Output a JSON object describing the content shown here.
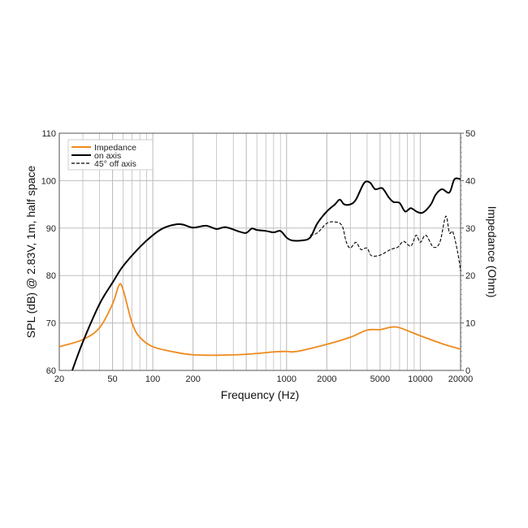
{
  "chart_data": {
    "type": "line",
    "title": "",
    "xlabel": "Frequency (Hz)",
    "ylabel": "SPL (dB) @ 2.83V, 1m, half space",
    "y2label": "Impedance (Ohm)",
    "xscale": "log",
    "xlim": [
      20,
      20000
    ],
    "ylim": [
      60,
      110
    ],
    "y2lim": [
      0,
      50
    ],
    "grid": true,
    "legend_position": "top-left",
    "x_ticks": [
      20,
      50,
      100,
      200,
      1000,
      2000,
      5000,
      10000,
      20000
    ],
    "x_tick_labels": [
      "20",
      "50",
      "100",
      "200",
      "1000",
      "2000",
      "5000",
      "10000",
      "20000"
    ],
    "y_ticks": [
      "60",
      "70",
      "80",
      "90",
      "100",
      "110"
    ],
    "y2_ticks": [
      "0",
      "10",
      "20",
      "30",
      "40",
      "50"
    ],
    "colors": {
      "impedance": "#ef8a1c",
      "on_axis": "#000000",
      "off_axis": "#000000"
    },
    "series": [
      {
        "name": "Impedance",
        "axis": "right",
        "style": "solid",
        "x": [
          20,
          30,
          40,
          50,
          56,
          60,
          70,
          80,
          100,
          150,
          200,
          300,
          500,
          800,
          1000,
          1200,
          2000,
          3000,
          4000,
          5000,
          6000,
          7000,
          10000,
          15000,
          20000
        ],
        "y": [
          5,
          6.5,
          9,
          14,
          18,
          17,
          10,
          7,
          5,
          3.8,
          3.3,
          3.2,
          3.4,
          3.9,
          4.0,
          4.0,
          5.5,
          7,
          8.5,
          8.6,
          9.1,
          9,
          7.3,
          5.5,
          4.5
        ]
      },
      {
        "name": "on axis",
        "axis": "left",
        "style": "solid",
        "x": [
          25,
          30,
          40,
          50,
          60,
          80,
          100,
          120,
          150,
          170,
          200,
          250,
          300,
          350,
          450,
          500,
          550,
          600,
          700,
          800,
          900,
          1000,
          1100,
          1300,
          1500,
          1700,
          2000,
          2300,
          2500,
          2700,
          3000,
          3300,
          3800,
          4200,
          4600,
          5200,
          5800,
          6300,
          7000,
          7700,
          8500,
          9500,
          10500,
          12000,
          13000,
          14500,
          16500,
          18000,
          20000
        ],
        "y": [
          60,
          66,
          74,
          78.5,
          82,
          86,
          88.5,
          90,
          90.8,
          90.7,
          90.1,
          90.5,
          89.8,
          90.2,
          89.2,
          89,
          89.9,
          89.6,
          89.4,
          89.1,
          89.4,
          88,
          87.4,
          87.4,
          88,
          91,
          93.5,
          95,
          96,
          95,
          95,
          96,
          99.5,
          99.6,
          98.2,
          98.4,
          96.5,
          95.5,
          95.3,
          93.5,
          94.2,
          93.4,
          93.3,
          95,
          97,
          98.2,
          97.5,
          100.3,
          100.3
        ]
      },
      {
        "name": "45° off axis",
        "axis": "left",
        "style": "dashed",
        "x": [
          1500,
          1700,
          2000,
          2300,
          2600,
          2800,
          3000,
          3300,
          3600,
          4000,
          4300,
          5000,
          6000,
          6800,
          7500,
          8500,
          9300,
          10000,
          11000,
          12500,
          14000,
          15500,
          16500,
          17500,
          19000,
          20000
        ],
        "y": [
          88.5,
          89,
          91,
          91.3,
          90.5,
          87,
          85.8,
          87,
          85.5,
          85.8,
          84.2,
          84.3,
          85.5,
          86,
          87.2,
          86.2,
          88.5,
          87,
          88.5,
          86,
          87,
          92.5,
          89,
          89.2,
          85,
          81
        ]
      }
    ]
  }
}
